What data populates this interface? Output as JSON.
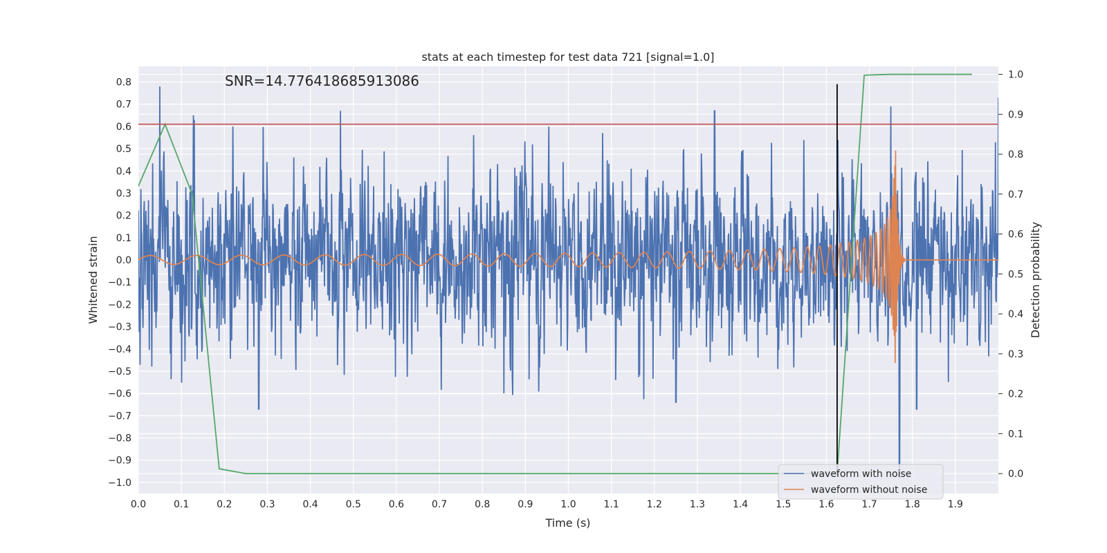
{
  "chart_data": {
    "type": "line",
    "title": "stats at each timestep for test data 721 [signal=1.0]",
    "xlabel": "Time (s)",
    "ylabel_left": "Whitened strain",
    "ylabel_right": "Detection probability",
    "annotation": "SNR=14.776418685913086",
    "xlim": [
      0.0,
      2.0
    ],
    "ylim_left": [
      -1.05,
      0.87
    ],
    "ylim_right": [
      -0.05,
      1.02
    ],
    "x_ticks": [
      "0.0",
      "0.1",
      "0.2",
      "0.3",
      "0.4",
      "0.5",
      "0.6",
      "0.7",
      "0.8",
      "0.9",
      "1.0",
      "1.1",
      "1.2",
      "1.3",
      "1.4",
      "1.5",
      "1.6",
      "1.7",
      "1.8",
      "1.9"
    ],
    "y_left_ticks": [
      "0.8",
      "0.7",
      "0.6",
      "0.5",
      "0.4",
      "0.3",
      "0.2",
      "0.1",
      "0.0",
      "−0.1",
      "−0.2",
      "−0.3",
      "−0.4",
      "−0.5",
      "−0.6",
      "−0.7",
      "−0.8",
      "−0.9",
      "−1.0"
    ],
    "y_right_ticks": [
      "1.0",
      "0.9",
      "0.8",
      "0.7",
      "0.6",
      "0.5",
      "0.4",
      "0.3",
      "0.2",
      "0.1",
      "0.0"
    ],
    "grid": true,
    "legend_position": "bottom-right",
    "series": [
      {
        "name": "waveform with noise",
        "color": "#4c72b0",
        "axis": "left",
        "kind": "noise",
        "amplitude_sd": 0.2,
        "spikes": [
          [
            0.05,
            0.78
          ],
          [
            0.13,
            0.63
          ],
          [
            0.22,
            0.6
          ],
          [
            0.47,
            0.67
          ],
          [
            1.34,
            0.67
          ],
          [
            1.75,
            0.69
          ],
          [
            1.25,
            -0.64
          ],
          [
            0.85,
            -0.6
          ],
          [
            1.77,
            -0.98
          ],
          [
            0.28,
            -0.67
          ],
          [
            1.81,
            -0.67
          ],
          [
            2.0,
            0.73
          ]
        ]
      },
      {
        "name": "waveform without noise",
        "color": "#dd8452",
        "axis": "left",
        "kind": "chirp",
        "t_merge": 1.76,
        "peak": 0.67,
        "trough": -0.62
      },
      {
        "name": "",
        "color": "#55a868",
        "axis": "right",
        "kind": "probability",
        "x": [
          0.0,
          0.062,
          0.125,
          0.188,
          0.25,
          0.312,
          0.375,
          0.438,
          0.5,
          0.562,
          0.625,
          0.688,
          0.75,
          0.812,
          0.875,
          0.938,
          1.0,
          1.062,
          1.125,
          1.188,
          1.25,
          1.312,
          1.375,
          1.438,
          1.5,
          1.562,
          1.625,
          1.688,
          1.75,
          1.812,
          1.875,
          1.938
        ],
        "y": [
          0.72,
          0.875,
          0.7,
          0.012,
          0.0,
          0.0,
          0.0,
          0.0,
          0.0,
          0.0,
          0.0,
          0.0,
          0.0,
          0.0,
          0.0,
          0.0,
          0.0,
          0.0,
          0.0,
          0.0,
          0.0,
          0.0,
          0.0,
          0.0,
          0.0,
          0.0,
          0.0,
          0.998,
          1.0,
          1.0,
          1.0,
          1.0
        ]
      },
      {
        "name": "",
        "color": "#c44e52",
        "axis": "left",
        "kind": "hline",
        "y": 0.61
      },
      {
        "name": "",
        "color": "#000000",
        "axis": "left",
        "kind": "vline",
        "x": 1.625,
        "y_range": [
          -0.97,
          0.79
        ]
      }
    ]
  }
}
